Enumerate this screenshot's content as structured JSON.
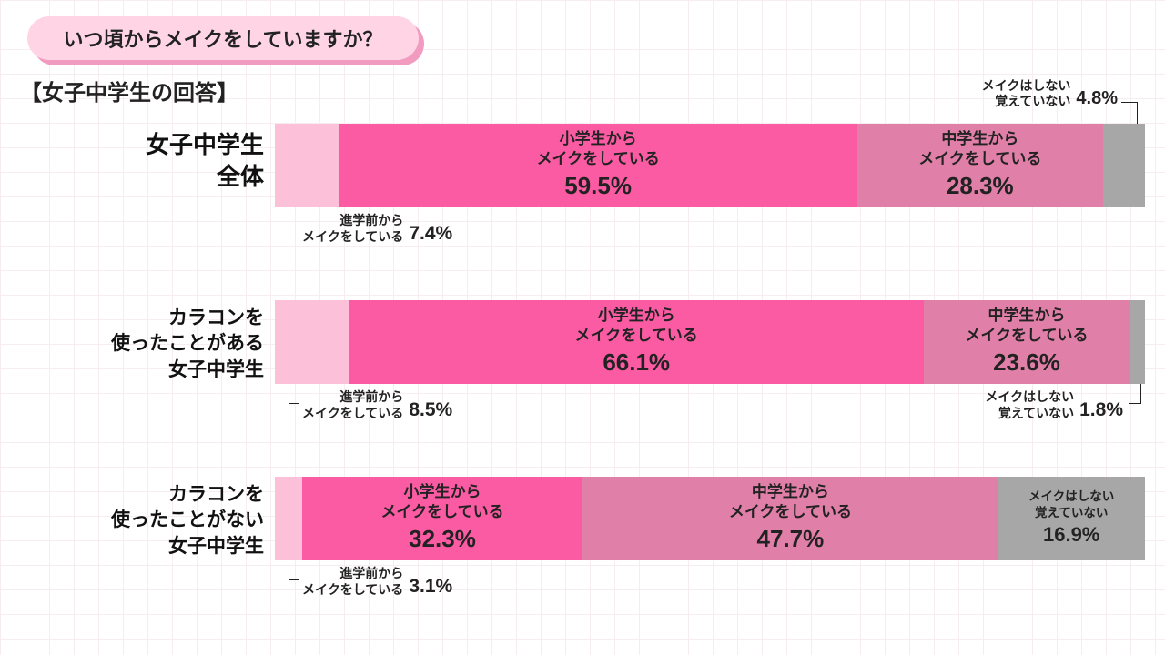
{
  "title": "いつ頃からメイクをしていますか？",
  "subtitle": "【女子中学生の回答】",
  "colors": {
    "seg1": "#fcc0d8",
    "seg2": "#fa5ba2",
    "seg3": "#e07fa7",
    "seg4": "#a7a7a7",
    "seg2_text": "#222",
    "seg3_text": "#222",
    "seg4_text": "#222"
  },
  "segLabels": {
    "pre": {
      "l1": "進学前から",
      "l2": "メイクをしている"
    },
    "es": {
      "l1": "小学生から",
      "l2": "メイクをしている"
    },
    "ms": {
      "l1": "中学生から",
      "l2": "メイクをしている"
    },
    "none": {
      "l1": "メイクはしない",
      "l2": "覚えていない"
    }
  },
  "rows": [
    {
      "label_l1": "女子中学生",
      "label_l2": "全体",
      "label_fs": 26,
      "vals": {
        "pre": 7.4,
        "es": 59.5,
        "ms": 28.3,
        "none": 4.8
      },
      "esShow": true,
      "msShow": true,
      "noneShow": false,
      "noneAbove": true,
      "preBelow": true,
      "noneBelow": false
    },
    {
      "label_l1": "カラコンを",
      "label_l2": "使ったことがある",
      "label_l3": "女子中学生",
      "label_fs": 21,
      "vals": {
        "pre": 8.5,
        "es": 66.1,
        "ms": 23.6,
        "none": 1.8
      },
      "esShow": true,
      "msShow": true,
      "noneShow": false,
      "noneAbove": false,
      "preBelow": true,
      "noneBelow": true
    },
    {
      "label_l1": "カラコンを",
      "label_l2": "使ったことがない",
      "label_l3": "女子中学生",
      "label_fs": 21,
      "vals": {
        "pre": 3.1,
        "es": 32.3,
        "ms": 47.7,
        "none": 16.9
      },
      "esShow": true,
      "msShow": true,
      "noneShow": true,
      "noneSmall": true,
      "noneAbove": false,
      "preBelow": true,
      "noneBelow": false
    }
  ]
}
